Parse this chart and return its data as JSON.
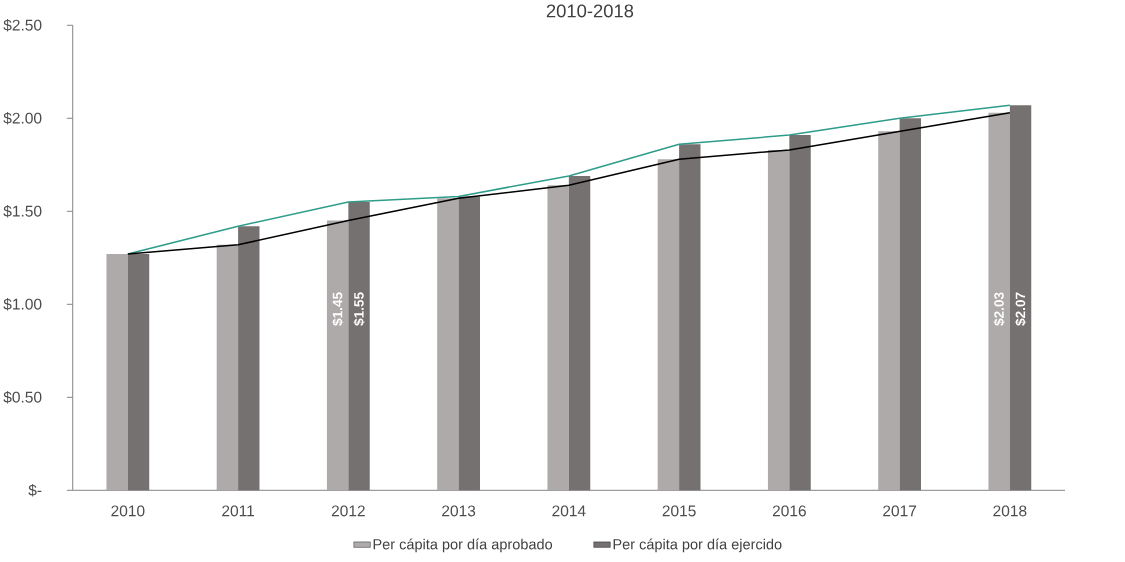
{
  "chart_data": {
    "type": "bar",
    "title": "2010-2018",
    "categories": [
      "2010",
      "2011",
      "2012",
      "2013",
      "2014",
      "2015",
      "2016",
      "2017",
      "2018"
    ],
    "series": [
      {
        "name": "Per cápita por día aprobado",
        "color": "#aeaaaa",
        "values": [
          1.27,
          1.32,
          1.45,
          1.57,
          1.64,
          1.78,
          1.83,
          1.93,
          2.03
        ],
        "value_labels": [
          null,
          null,
          "$1.45",
          null,
          null,
          null,
          null,
          null,
          "$2.03"
        ]
      },
      {
        "name": "Per cápita por día ejercido",
        "color": "#767171",
        "values": [
          1.27,
          1.42,
          1.55,
          1.58,
          1.69,
          1.86,
          1.91,
          2.0,
          2.07
        ],
        "value_labels": [
          null,
          null,
          "$1.55",
          null,
          null,
          null,
          null,
          null,
          "$2.07"
        ]
      },
      {
        "type": "line",
        "color": "#2e9c8a",
        "values": [
          1.27,
          1.42,
          1.55,
          1.58,
          1.69,
          1.86,
          1.91,
          2.0,
          2.07
        ]
      },
      {
        "type": "line",
        "color": "#000000",
        "values": [
          1.27,
          1.32,
          1.45,
          1.57,
          1.64,
          1.78,
          1.83,
          1.93,
          2.03
        ]
      }
    ],
    "ylim": [
      0,
      2.5
    ],
    "yticks": [
      {
        "value": 0,
        "label": "$-"
      },
      {
        "value": 0.5,
        "label": "$0.50"
      },
      {
        "value": 1,
        "label": "$1.00"
      },
      {
        "value": 1.5,
        "label": "$1.50"
      },
      {
        "value": 2,
        "label": "$2.00"
      },
      {
        "value": 2.5,
        "label": "$2.50"
      }
    ],
    "legend": "bottom"
  }
}
